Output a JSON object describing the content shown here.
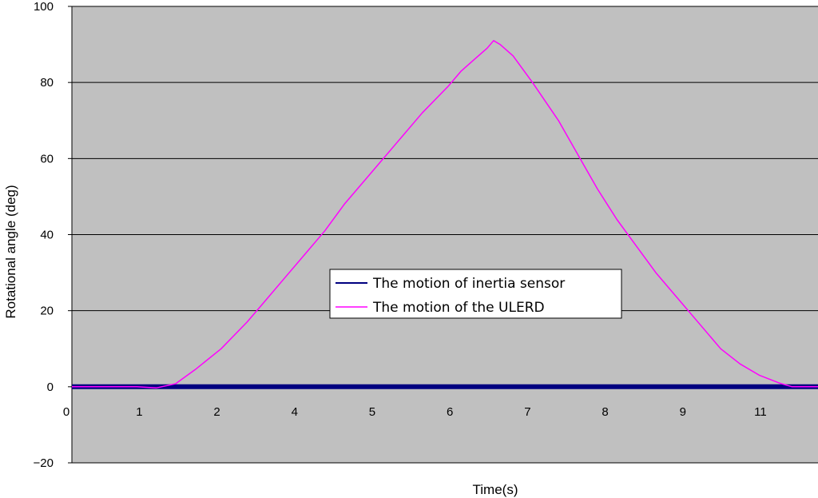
{
  "chart_data": {
    "type": "line",
    "title": "",
    "xlabel": "Time(s)",
    "ylabel": "Rotational angle (deg)",
    "ylim": [
      -20,
      100
    ],
    "xlim": [
      0,
      11.5
    ],
    "y_ticks": [
      100,
      80,
      60,
      40,
      20,
      0,
      -20
    ],
    "x_tick_labels": [
      "0",
      "1",
      "2",
      "4",
      "5",
      "6",
      "7",
      "8",
      "9",
      "11"
    ],
    "grid": "horizontal",
    "background": "#c0c0c0",
    "legend_position": "center",
    "series": [
      {
        "name": "The motion of inertia sensor",
        "color": "#000080",
        "x": [
          0,
          11.5
        ],
        "y": [
          0,
          0
        ]
      },
      {
        "name": "The motion of the ULERD",
        "color": "#ff00ff",
        "x": [
          0,
          1.0,
          1.3,
          1.6,
          1.9,
          2.3,
          2.7,
          3.0,
          3.3,
          3.6,
          3.9,
          4.2,
          4.6,
          5.0,
          5.4,
          5.8,
          6.0,
          6.2,
          6.4,
          6.5,
          6.6,
          6.8,
          7.1,
          7.5,
          7.8,
          8.1,
          8.4,
          8.7,
          9.0,
          9.3,
          9.7,
          10.0,
          10.3,
          10.6,
          10.9,
          11.1,
          11.5
        ],
        "y": [
          0,
          0,
          -0.3,
          0.8,
          4.5,
          10,
          17,
          23,
          29,
          35,
          41,
          48,
          56,
          64,
          72,
          79,
          83,
          86,
          89,
          91,
          90,
          87,
          80,
          70,
          61,
          52,
          44,
          37,
          30,
          24,
          16,
          10,
          6,
          3,
          1,
          0,
          0
        ]
      }
    ]
  }
}
